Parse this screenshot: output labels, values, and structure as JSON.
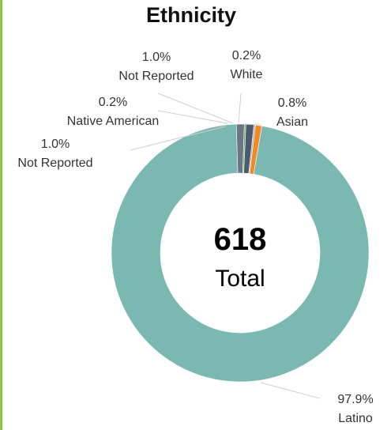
{
  "chart_data": {
    "type": "pie",
    "style": "donut",
    "title": "Ethnicity",
    "center_value": "618",
    "center_label": "Total",
    "slices": [
      {
        "label": "Latino",
        "value": 97.9,
        "value_label": "97.9%",
        "color": "#7ab8b1"
      },
      {
        "label": "Not Reported",
        "value": 1.0,
        "value_label": "1.0%",
        "color": "#6b7683"
      },
      {
        "label": "Native American",
        "value": 0.2,
        "value_label": "0.2%",
        "color": "#5fa85a"
      },
      {
        "label": "Not Reported",
        "value": 1.0,
        "value_label": "1.0%",
        "color": "#4a5a70"
      },
      {
        "label": "White",
        "value": 0.2,
        "value_label": "0.2%",
        "color": "#a9a9a9"
      },
      {
        "label": "Asian",
        "value": 0.8,
        "value_label": "0.8%",
        "color": "#f08a24"
      }
    ]
  }
}
